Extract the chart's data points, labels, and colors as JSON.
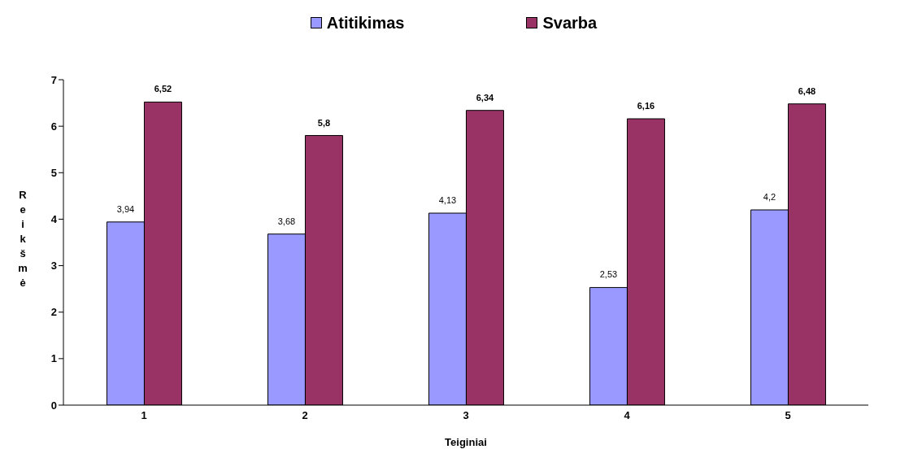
{
  "chart_data": {
    "type": "bar",
    "xlabel": "Teiginiai",
    "ylabel": "Reikšmė",
    "categories": [
      "1",
      "2",
      "3",
      "4",
      "5"
    ],
    "series": [
      {
        "name": "Atitikimas",
        "color": "#9999ff",
        "values": [
          3.94,
          3.68,
          4.13,
          2.53,
          4.2
        ],
        "value_labels": [
          "3,94",
          "3,68",
          "4,13",
          "2,53",
          "4,2"
        ]
      },
      {
        "name": "Svarba",
        "color": "#993366",
        "values": [
          6.52,
          5.8,
          6.34,
          6.16,
          6.48
        ],
        "value_labels": [
          "6,52",
          "5,8",
          "6,34",
          "6,16",
          "6,48"
        ]
      }
    ],
    "ylim": [
      0,
      7
    ],
    "yticks": [
      0,
      1,
      2,
      3,
      4,
      5,
      6,
      7
    ],
    "grid": false,
    "legend": "top"
  }
}
